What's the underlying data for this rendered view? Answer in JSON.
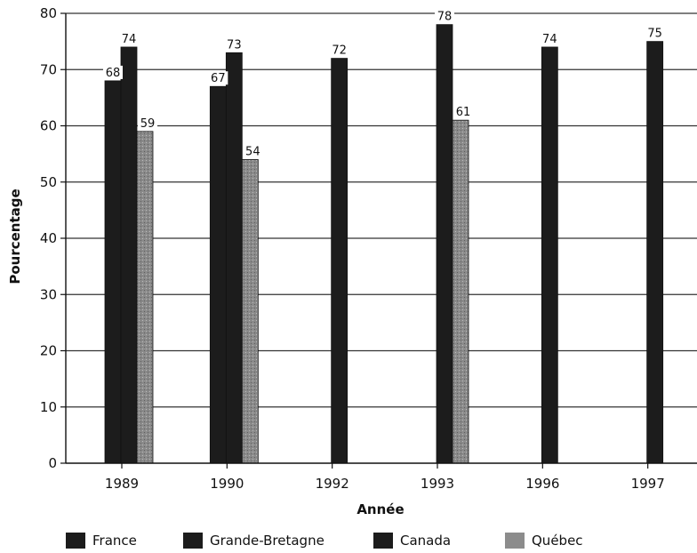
{
  "chart_data": {
    "type": "bar",
    "xlabel": "Année",
    "ylabel": "Pourcentage",
    "ylim": [
      0,
      80
    ],
    "yticks": [
      "0",
      "10",
      "20",
      "30",
      "40",
      "50",
      "60",
      "70",
      "80"
    ],
    "categories": [
      "1989",
      "1990",
      "1992",
      "1993",
      "1996",
      "1997"
    ],
    "grid": "horizontal",
    "legend_position": "bottom",
    "series": [
      {
        "name": "France",
        "color": "#1c1c1c",
        "values": [
          68,
          67,
          null,
          null,
          null,
          null
        ]
      },
      {
        "name": "Grande-Bretagne",
        "color": "#1c1c1c",
        "values": [
          74,
          73,
          null,
          null,
          null,
          null
        ]
      },
      {
        "name": "Canada",
        "color": "#1c1c1c",
        "values": [
          null,
          null,
          72,
          78,
          74,
          75
        ]
      },
      {
        "name": "Québec",
        "color": "#8c8c8c",
        "values": [
          59,
          54,
          null,
          61,
          null,
          null
        ]
      }
    ]
  }
}
